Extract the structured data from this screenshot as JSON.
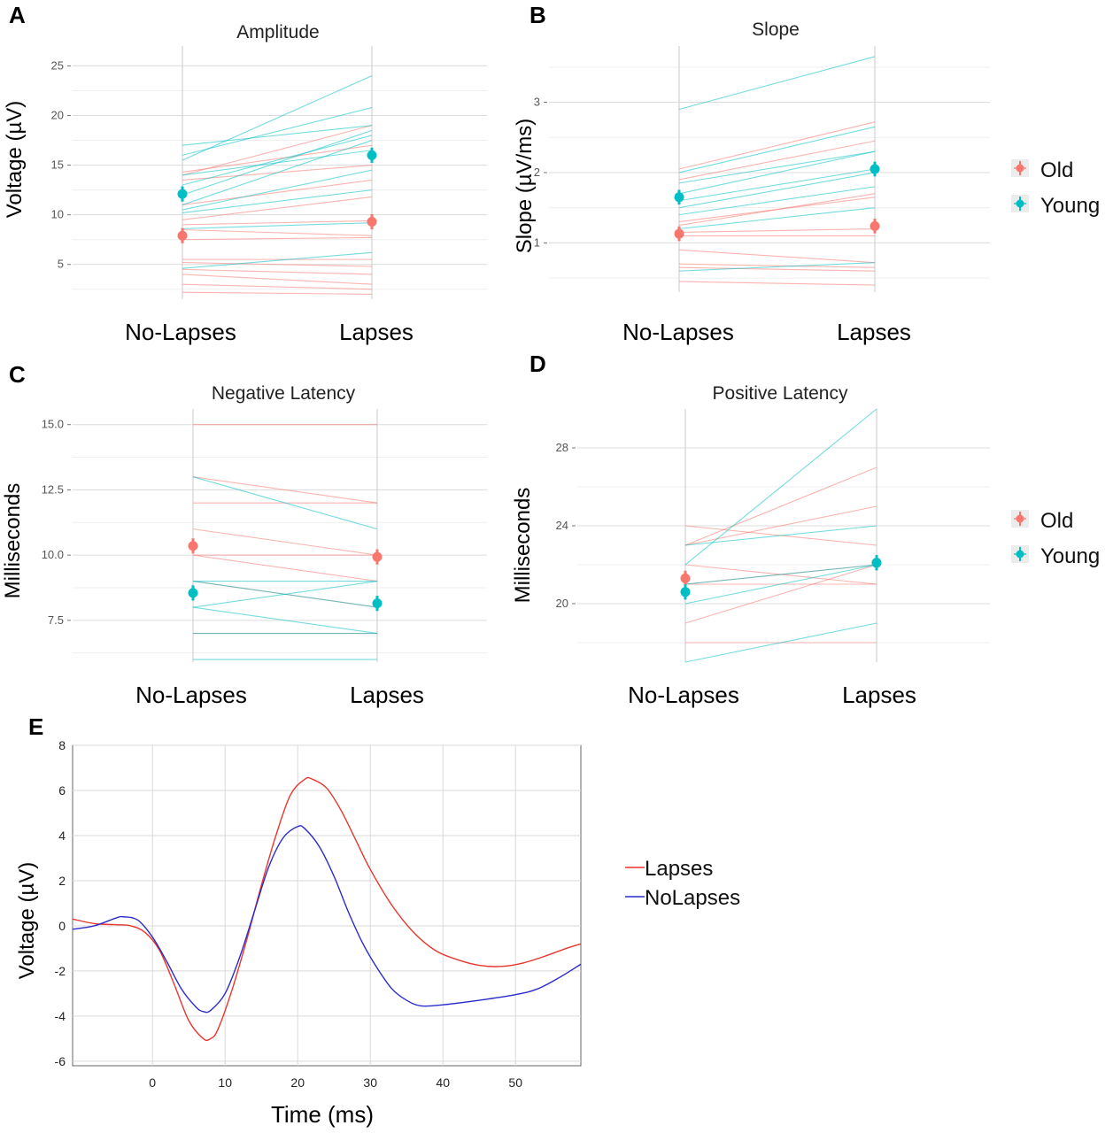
{
  "chart_data": [
    {
      "panel": "A",
      "type": "line",
      "title": "Amplitude",
      "ylabel": "Voltage (µV)",
      "categories": [
        "No-Lapses",
        "Lapses"
      ],
      "ylim": [
        1.5,
        27
      ],
      "yticks": [
        5,
        10,
        15,
        20,
        25
      ],
      "legend": [
        "Old",
        "Young"
      ],
      "series": [
        {
          "name": "Old",
          "color": "#F8766D",
          "lines": [
            [
              2.2,
              2.0
            ],
            [
              3.0,
              2.5
            ],
            [
              4.0,
              3.0
            ],
            [
              4.5,
              4.0
            ],
            [
              5.2,
              4.8
            ],
            [
              5.5,
              5.5
            ],
            [
              7.5,
              7.7
            ],
            [
              8.5,
              7.9
            ],
            [
              9.0,
              9.4
            ],
            [
              9.5,
              11.8
            ],
            [
              11.0,
              13.5
            ],
            [
              13.5,
              15.0
            ],
            [
              14.0,
              19.0
            ],
            [
              14.3,
              17.0
            ]
          ],
          "means": [
            7.9,
            9.3
          ]
        },
        {
          "name": "Young",
          "color": "#00BFC4",
          "lines": [
            [
              4.6,
              6.2
            ],
            [
              8.6,
              9.2
            ],
            [
              10.2,
              12.5
            ],
            [
              10.5,
              14.5
            ],
            [
              11.0,
              17.5
            ],
            [
              12.0,
              18.5
            ],
            [
              13.0,
              18.0
            ],
            [
              14.0,
              16.5
            ],
            [
              16.0,
              20.8
            ],
            [
              17.0,
              19.0
            ],
            [
              15.5,
              24.0
            ]
          ],
          "means": [
            12.1,
            16.0
          ]
        }
      ]
    },
    {
      "panel": "B",
      "type": "line",
      "title": "Slope",
      "ylabel": "Slope (µV/ms)",
      "categories": [
        "No-Lapses",
        "Lapses"
      ],
      "ylim": [
        0.3,
        3.8
      ],
      "yticks": [
        1,
        2,
        3
      ],
      "legend": [
        "Old",
        "Young"
      ],
      "series": [
        {
          "name": "Old",
          "color": "#F8766D",
          "lines": [
            [
              0.45,
              0.4
            ],
            [
              0.65,
              0.6
            ],
            [
              0.7,
              0.65
            ],
            [
              0.9,
              0.72
            ],
            [
              1.1,
              1.1
            ],
            [
              1.15,
              1.2
            ],
            [
              1.25,
              1.7
            ],
            [
              1.3,
              1.65
            ],
            [
              1.9,
              2.45
            ],
            [
              2.05,
              2.72
            ]
          ],
          "means": [
            1.13,
            1.24
          ]
        },
        {
          "name": "Young",
          "color": "#00BFC4",
          "lines": [
            [
              0.6,
              0.72
            ],
            [
              1.2,
              1.5
            ],
            [
              1.4,
              1.8
            ],
            [
              1.5,
              2.0
            ],
            [
              1.6,
              2.05
            ],
            [
              1.7,
              2.3
            ],
            [
              1.85,
              2.3
            ],
            [
              2.0,
              2.65
            ],
            [
              2.9,
              3.65
            ]
          ],
          "means": [
            1.65,
            2.05
          ]
        }
      ]
    },
    {
      "panel": "C",
      "type": "line",
      "title": "Negative Latency",
      "ylabel": "Milliseconds",
      "categories": [
        "No-Lapses",
        "Lapses"
      ],
      "ylim": [
        5.9,
        15.6
      ],
      "yticks": [
        7.5,
        10.0,
        12.5,
        15.0
      ],
      "tick_labels": [
        "7.5",
        "10.0",
        "12.5",
        "15.0"
      ],
      "legend": [
        "Old",
        "Young"
      ],
      "series": [
        {
          "name": "Old",
          "color": "#F8766D",
          "lines": [
            [
              15,
              15
            ],
            [
              13,
              12
            ],
            [
              12,
              12
            ],
            [
              11,
              10
            ],
            [
              10,
              10
            ],
            [
              10,
              9
            ],
            [
              9,
              8
            ],
            [
              7,
              7
            ]
          ],
          "means": [
            10.35,
            9.93
          ]
        },
        {
          "name": "Young",
          "color": "#00BFC4",
          "lines": [
            [
              13,
              11
            ],
            [
              9,
              9
            ],
            [
              9,
              8
            ],
            [
              8,
              9
            ],
            [
              8,
              7
            ],
            [
              7,
              7
            ],
            [
              6,
              6
            ]
          ],
          "means": [
            8.55,
            8.15
          ]
        }
      ]
    },
    {
      "panel": "D",
      "type": "line",
      "title": "Positive Latency",
      "ylabel": "Milliseconds",
      "categories": [
        "No-Lapses",
        "Lapses"
      ],
      "ylim": [
        17,
        30
      ],
      "yticks": [
        20,
        24,
        28
      ],
      "legend": [
        "Old",
        "Young"
      ],
      "series": [
        {
          "name": "Old",
          "color": "#F8766D",
          "lines": [
            [
              24,
              23
            ],
            [
              23,
              27
            ],
            [
              23,
              25
            ],
            [
              22,
              21
            ],
            [
              21,
              21
            ],
            [
              21,
              22
            ],
            [
              19,
              22
            ],
            [
              18,
              18
            ]
          ],
          "means": [
            21.3,
            22.1
          ]
        },
        {
          "name": "Young",
          "color": "#00BFC4",
          "lines": [
            [
              22,
              30
            ],
            [
              23,
              24
            ],
            [
              21,
              22
            ],
            [
              20,
              22
            ],
            [
              17,
              19
            ]
          ],
          "means": [
            20.6,
            22.1
          ]
        }
      ]
    },
    {
      "panel": "E",
      "type": "line",
      "title": "",
      "xlabel": "Time (ms)",
      "ylabel": "Voltage (µV)",
      "xlim": [
        -11,
        59
      ],
      "ylim": [
        -6.2,
        8
      ],
      "xticks": [
        0,
        10,
        20,
        30,
        40,
        50
      ],
      "yticks": [
        -6,
        -4,
        -2,
        0,
        2,
        4,
        6,
        8
      ],
      "legend": [
        "Lapses",
        "NoLapses"
      ],
      "series": [
        {
          "name": "Lapses",
          "color": "#e8362c",
          "x": [
            -11,
            -8,
            -5,
            -3,
            -1,
            1,
            3,
            5,
            7,
            8,
            9,
            11,
            13,
            15,
            17,
            19,
            21,
            22,
            24,
            26,
            28,
            30,
            33,
            36,
            39,
            42,
            45,
            48,
            51,
            54,
            57,
            59
          ],
          "y": [
            0.3,
            0.1,
            0.05,
            0.0,
            -0.3,
            -1.1,
            -2.6,
            -4.2,
            -5.0,
            -5.0,
            -4.6,
            -2.8,
            -0.6,
            1.8,
            4.0,
            5.8,
            6.5,
            6.5,
            6.1,
            5.1,
            3.8,
            2.5,
            0.9,
            -0.3,
            -1.1,
            -1.5,
            -1.75,
            -1.8,
            -1.65,
            -1.35,
            -1.0,
            -0.8
          ]
        },
        {
          "name": "NoLapses",
          "color": "#2b2bcc",
          "x": [
            -11,
            -8,
            -5,
            -4,
            -2,
            0,
            2,
            4,
            6,
            7,
            8,
            10,
            12,
            14,
            16,
            18,
            20,
            21,
            23,
            25,
            27,
            29,
            31,
            33,
            35,
            37,
            40,
            45,
            50,
            53,
            56,
            59
          ],
          "y": [
            -0.15,
            0.0,
            0.35,
            0.4,
            0.25,
            -0.5,
            -1.6,
            -2.8,
            -3.6,
            -3.8,
            -3.75,
            -3.0,
            -1.4,
            0.6,
            2.6,
            3.9,
            4.4,
            4.3,
            3.5,
            2.2,
            0.6,
            -0.8,
            -1.9,
            -2.8,
            -3.3,
            -3.55,
            -3.5,
            -3.3,
            -3.05,
            -2.8,
            -2.3,
            -1.7
          ]
        }
      ]
    }
  ]
}
